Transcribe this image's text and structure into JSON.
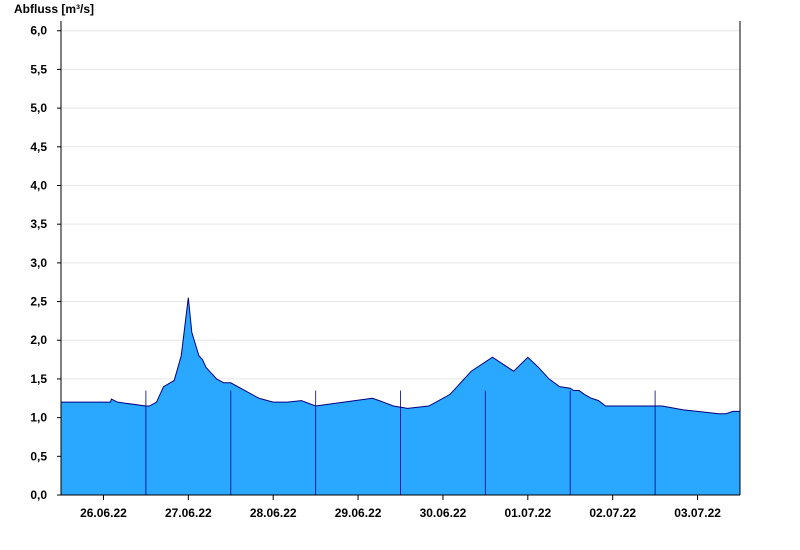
{
  "colors": {
    "area": "#2aa7ff",
    "line": "#000080",
    "axis": "#000000",
    "grid": "#e6e6e6"
  },
  "chart_data": {
    "type": "area",
    "ylabel": "Abfluss [m³/s]",
    "ylim": [
      0,
      6.1
    ],
    "xlim": [
      "2022-06-25T12:00",
      "2022-07-03T12:00"
    ],
    "grid": true,
    "yticks": [
      {
        "value": 0,
        "label": "0,0"
      },
      {
        "value": 0.5,
        "label": "0,5"
      },
      {
        "value": 1.0,
        "label": "1,0"
      },
      {
        "value": 1.5,
        "label": "1,5"
      },
      {
        "value": 2.0,
        "label": "2,0"
      },
      {
        "value": 2.5,
        "label": "2,5"
      },
      {
        "value": 3.0,
        "label": "3,0"
      },
      {
        "value": 3.5,
        "label": "3,5"
      },
      {
        "value": 4.0,
        "label": "4,0"
      },
      {
        "value": 4.5,
        "label": "4,5"
      },
      {
        "value": 5.0,
        "label": "5,0"
      },
      {
        "value": 5.5,
        "label": "5,5"
      },
      {
        "value": 6.0,
        "label": "6,0"
      }
    ],
    "xticks": [
      {
        "value": "2022-06-26T00:00",
        "label": "26.06.22"
      },
      {
        "value": "2022-06-27T00:00",
        "label": "27.06.22"
      },
      {
        "value": "2022-06-28T00:00",
        "label": "28.06.22"
      },
      {
        "value": "2022-06-29T00:00",
        "label": "29.06.22"
      },
      {
        "value": "2022-06-30T00:00",
        "label": "30.06.22"
      },
      {
        "value": "2022-07-01T00:00",
        "label": "01.07.22"
      },
      {
        "value": "2022-07-02T00:00",
        "label": "02.07.22"
      },
      {
        "value": "2022-07-03T00:00",
        "label": "03.07.22"
      }
    ],
    "day_boundaries": [
      "2022-06-26T12:00",
      "2022-06-27T12:00",
      "2022-06-28T12:00",
      "2022-06-29T12:00",
      "2022-06-30T12:00",
      "2022-07-01T12:00",
      "2022-07-02T12:00"
    ],
    "x": [
      "2022-06-25T12:00",
      "2022-06-26T02:00",
      "2022-06-26T02:15",
      "2022-06-26T04:00",
      "2022-06-26T12:00",
      "2022-06-26T13:00",
      "2022-06-26T15:00",
      "2022-06-26T17:00",
      "2022-06-26T20:00",
      "2022-06-26T22:00",
      "2022-06-27T00:00",
      "2022-06-27T01:00",
      "2022-06-27T02:00",
      "2022-06-27T03:00",
      "2022-06-27T04:00",
      "2022-06-27T05:00",
      "2022-06-27T06:00",
      "2022-06-27T08:00",
      "2022-06-27T10:00",
      "2022-06-27T12:00",
      "2022-06-27T16:00",
      "2022-06-27T20:00",
      "2022-06-28T00:00",
      "2022-06-28T04:00",
      "2022-06-28T08:00",
      "2022-06-28T12:00",
      "2022-06-28T20:00",
      "2022-06-29T04:00",
      "2022-06-29T06:00",
      "2022-06-29T10:00",
      "2022-06-29T14:00",
      "2022-06-29T20:00",
      "2022-06-30T02:00",
      "2022-06-30T08:00",
      "2022-06-30T14:00",
      "2022-06-30T20:00",
      "2022-07-01T00:00",
      "2022-07-01T03:00",
      "2022-07-01T06:00",
      "2022-07-01T09:00",
      "2022-07-01T12:00",
      "2022-07-01T13:00",
      "2022-07-01T14:30",
      "2022-07-01T16:00",
      "2022-07-01T18:00",
      "2022-07-01T20:00",
      "2022-07-01T22:00",
      "2022-07-02T00:00",
      "2022-07-02T06:00",
      "2022-07-02T14:00",
      "2022-07-02T20:00",
      "2022-07-03T00:00",
      "2022-07-03T06:00",
      "2022-07-03T08:00",
      "2022-07-03T10:00",
      "2022-07-03T12:00"
    ],
    "series": [
      {
        "values": [
          1.2,
          1.2,
          1.24,
          1.2,
          1.15,
          1.15,
          1.2,
          1.4,
          1.48,
          1.8,
          2.55,
          2.1,
          1.95,
          1.8,
          1.75,
          1.65,
          1.6,
          1.5,
          1.45,
          1.45,
          1.35,
          1.25,
          1.2,
          1.2,
          1.22,
          1.15,
          1.2,
          1.25,
          1.22,
          1.15,
          1.12,
          1.15,
          1.3,
          1.6,
          1.78,
          1.6,
          1.78,
          1.65,
          1.5,
          1.4,
          1.38,
          1.35,
          1.35,
          1.3,
          1.25,
          1.22,
          1.15,
          1.15,
          1.15,
          1.15,
          1.1,
          1.08,
          1.05,
          1.05,
          1.08,
          1.08
        ]
      }
    ]
  }
}
